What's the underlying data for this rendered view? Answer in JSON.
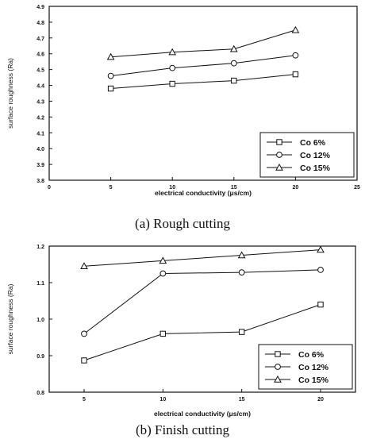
{
  "figure": {
    "captions": [
      "(a)  Rough cutting",
      "(b)  Finish cutting"
    ]
  },
  "chart_data": [
    {
      "type": "line",
      "xlabel": "electrical conductivity (μs/cm)",
      "ylabel": "surface roughness (Ra)",
      "xlim": [
        0,
        25
      ],
      "ylim": [
        3.8,
        4.9
      ],
      "xticks": [
        0,
        5,
        10,
        15,
        20,
        25
      ],
      "xtick_labels": [
        "0",
        "5",
        "10",
        "15",
        "20",
        "25"
      ],
      "yticks": [
        3.8,
        3.9,
        4.0,
        4.1,
        4.2,
        4.3,
        4.4,
        4.5,
        4.6,
        4.7,
        4.8,
        4.9
      ],
      "ytick_labels": [
        "3.8",
        "3.9",
        "4.0",
        "4.1",
        "4.2",
        "4.3",
        "4.4",
        "4.5",
        "4.6",
        "4.7",
        "4.8",
        "4.9"
      ],
      "grid": false,
      "legend_position": "bottom-right",
      "x": [
        5,
        10,
        15,
        20
      ],
      "series": [
        {
          "name": "Co 6%",
          "marker": "square",
          "values": [
            4.38,
            4.41,
            4.43,
            4.47
          ]
        },
        {
          "name": "Co 12%",
          "marker": "circle",
          "values": [
            4.46,
            4.51,
            4.54,
            4.59
          ]
        },
        {
          "name": "Co 15%",
          "marker": "triangle",
          "values": [
            4.58,
            4.61,
            4.63,
            4.75
          ]
        }
      ]
    },
    {
      "type": "line",
      "xlabel": "electrical conductivity (μs/cm)",
      "ylabel": "surface roughness (Ra)",
      "xlim": [
        5,
        20
      ],
      "ylim": [
        0.8,
        1.2
      ],
      "xticks": [
        5,
        10,
        15,
        20
      ],
      "xtick_labels": [
        "5",
        "10",
        "15",
        "20"
      ],
      "yticks": [
        0.8,
        0.9,
        1.0,
        1.1,
        1.2
      ],
      "ytick_labels": [
        "0.8",
        "0.9",
        "1.0",
        "1.1",
        "1.2"
      ],
      "grid": false,
      "legend_position": "bottom-right",
      "x": [
        5,
        10,
        15,
        20
      ],
      "series": [
        {
          "name": "Co 6%",
          "marker": "square",
          "values": [
            0.887,
            0.96,
            0.965,
            1.04
          ]
        },
        {
          "name": "Co 12%",
          "marker": "circle",
          "values": [
            0.96,
            1.125,
            1.128,
            1.135
          ]
        },
        {
          "name": "Co 15%",
          "marker": "triangle",
          "values": [
            1.145,
            1.16,
            1.175,
            1.19
          ]
        }
      ]
    }
  ]
}
